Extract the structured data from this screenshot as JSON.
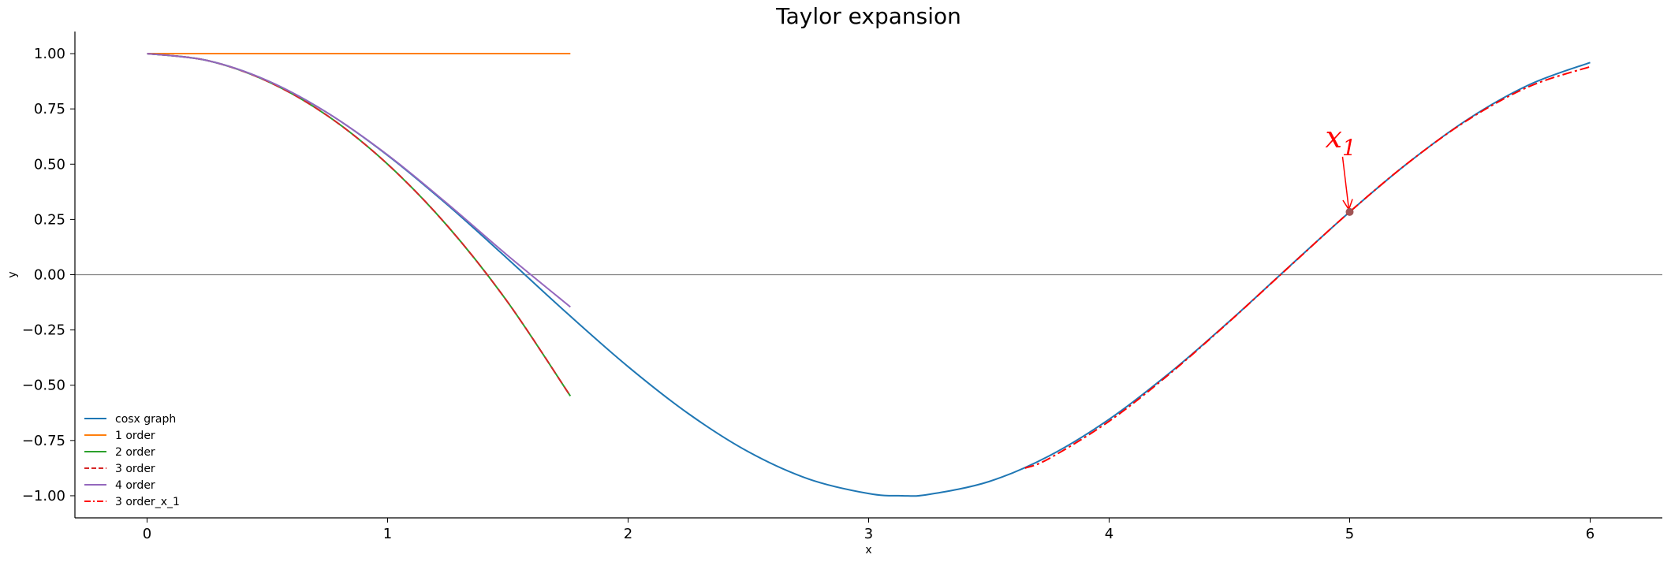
{
  "chart_data": {
    "type": "line",
    "title": "Taylor expansion",
    "xlabel": "x",
    "ylabel": "y",
    "xlim": [
      -0.3,
      6.3
    ],
    "ylim": [
      -1.1,
      1.1
    ],
    "xticks": [
      0,
      1,
      2,
      3,
      4,
      5,
      6
    ],
    "yticks": [
      1.0,
      0.75,
      0.5,
      0.25,
      0.0,
      -0.25,
      -0.5,
      -0.75,
      -1.0
    ],
    "xtick_labels": [
      "0",
      "1",
      "2",
      "3",
      "4",
      "5",
      "6"
    ],
    "ytick_labels": [
      "1.00",
      "0.75",
      "0.50",
      "0.25",
      "0.00",
      "−0.25",
      "−0.50",
      "−0.75",
      "−1.00"
    ],
    "horizontal_reference_line": 0,
    "legend_position": "lower-left",
    "series": [
      {
        "name": "cosx graph",
        "color": "#1f77b4",
        "style": "solid",
        "x": [
          0,
          0.25,
          0.5,
          0.75,
          1.0,
          1.25,
          1.5,
          1.75,
          2.0,
          2.25,
          2.5,
          2.75,
          3.0,
          3.14,
          3.25,
          3.5,
          3.75,
          4.0,
          4.25,
          4.5,
          4.75,
          5.0,
          5.25,
          5.5,
          5.75,
          6.0
        ],
        "y": [
          1.0,
          0.969,
          0.878,
          0.732,
          0.54,
          0.315,
          0.071,
          -0.178,
          -0.416,
          -0.628,
          -0.801,
          -0.924,
          -0.99,
          -1.0,
          -0.994,
          -0.936,
          -0.82,
          -0.654,
          -0.446,
          -0.211,
          0.038,
          0.284,
          0.512,
          0.709,
          0.861,
          0.96
        ]
      },
      {
        "name": "1 order",
        "color": "#ff7f0e",
        "style": "solid",
        "x": [
          0,
          1.76
        ],
        "y": [
          1.0,
          1.0
        ]
      },
      {
        "name": "2 order",
        "color": "#2ca02c",
        "style": "solid",
        "x": [
          0,
          0.25,
          0.5,
          0.75,
          1.0,
          1.25,
          1.5,
          1.76
        ],
        "y": [
          1.0,
          0.969,
          0.875,
          0.719,
          0.5,
          0.219,
          -0.125,
          -0.549
        ]
      },
      {
        "name": "3 order",
        "color": "#d62728",
        "style": "dashed",
        "x": [
          0,
          0.25,
          0.5,
          0.75,
          1.0,
          1.25,
          1.5,
          1.76
        ],
        "y": [
          1.0,
          0.969,
          0.875,
          0.719,
          0.5,
          0.219,
          -0.125,
          -0.549
        ]
      },
      {
        "name": "4 order",
        "color": "#9467bd",
        "style": "solid",
        "x": [
          0,
          0.25,
          0.5,
          0.75,
          1.0,
          1.25,
          1.5,
          1.76
        ],
        "y": [
          1.0,
          0.969,
          0.878,
          0.732,
          0.542,
          0.32,
          0.086,
          -0.146
        ]
      },
      {
        "name": "3 order_x_1",
        "color": "#ff0000",
        "style": "dashdot",
        "x": [
          3.65,
          3.75,
          4.0,
          4.25,
          4.5,
          4.75,
          5.0,
          5.25,
          5.5,
          5.75,
          6.0
        ],
        "y": [
          -0.875,
          -0.832,
          -0.663,
          -0.45,
          -0.212,
          0.037,
          0.284,
          0.512,
          0.706,
          0.853,
          0.941
        ]
      }
    ],
    "annotation": {
      "label": "x",
      "subscript": "1",
      "point": [
        5.0,
        0.284
      ],
      "color": "#ff0000",
      "marker_color": "#a05555"
    }
  }
}
